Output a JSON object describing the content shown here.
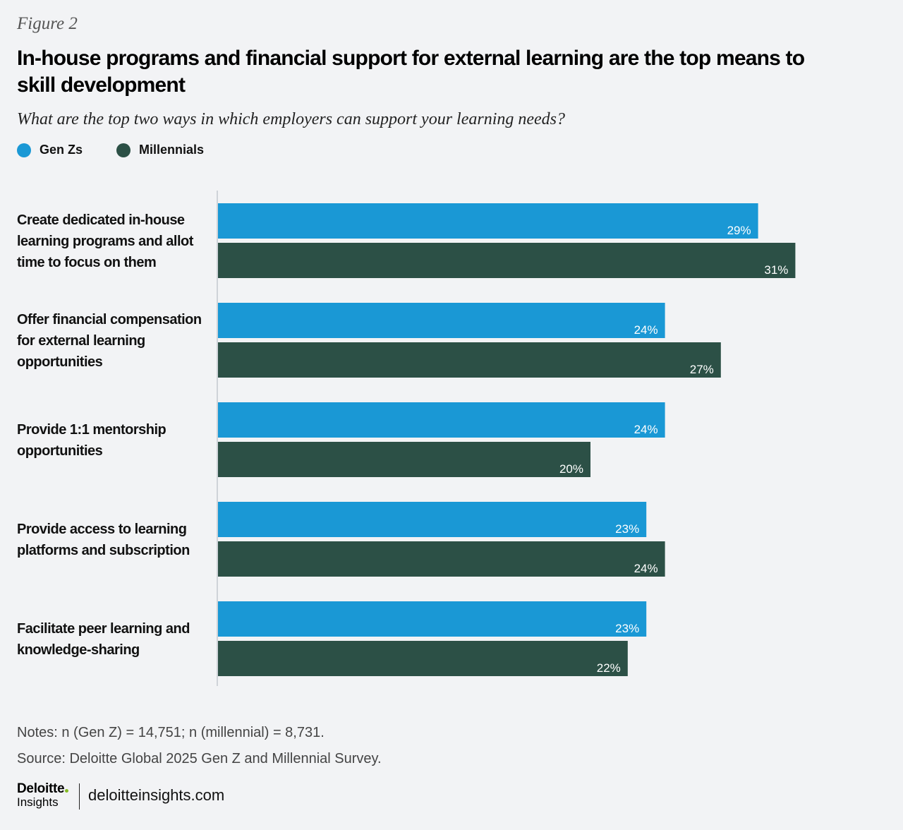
{
  "figure_label": "Figure 2",
  "title": "In-house programs and financial support for external learning are the top means to skill development",
  "question": "What are the top two ways in which employers can support your learning needs?",
  "legend": [
    {
      "name": "Gen Zs",
      "color": "#1a98d5"
    },
    {
      "name": "Millennials",
      "color": "#2c5046"
    }
  ],
  "chart_data": {
    "type": "bar",
    "orientation": "horizontal",
    "categories": [
      "Create dedicated in-house learning programs and allot time to focus on them",
      "Offer financial compensation for external learning opportunities",
      "Provide 1:1 mentorship opportunities",
      "Provide access to learning platforms and subscription",
      "Facilitate peer learning and knowledge-sharing"
    ],
    "category_lines": [
      [
        "Create dedicated in-house",
        "learning programs and allot",
        "time to focus on them"
      ],
      [
        "Offer financial compensation",
        "for external learning",
        "opportunities"
      ],
      [
        "Provide 1:1 mentorship",
        "opportunities"
      ],
      [
        "Provide access to learning",
        "platforms and subscription"
      ],
      [
        "Facilitate peer learning and",
        "knowledge-sharing"
      ]
    ],
    "series": [
      {
        "name": "Gen Zs",
        "color": "#1a98d5",
        "values": [
          29,
          24,
          24,
          23,
          23
        ],
        "labels": [
          "29%",
          "24%",
          "24%",
          "23%",
          "23%"
        ]
      },
      {
        "name": "Millennials",
        "color": "#2c5046",
        "values": [
          31,
          27,
          20,
          24,
          22
        ],
        "labels": [
          "31%",
          "27%",
          "20%",
          "24%",
          "22%"
        ]
      }
    ],
    "unit": "%",
    "xlim": [
      0,
      31
    ],
    "grid": false
  },
  "notes": "Notes: n (Gen Z) = 14,751; n (millennial) = 8,731.",
  "source": "Source: Deloitte Global 2025 Gen Z and Millennial Survey.",
  "logo": {
    "top": "Deloitte",
    "bottom": "Insights"
  },
  "site": "deloitteinsights.com"
}
